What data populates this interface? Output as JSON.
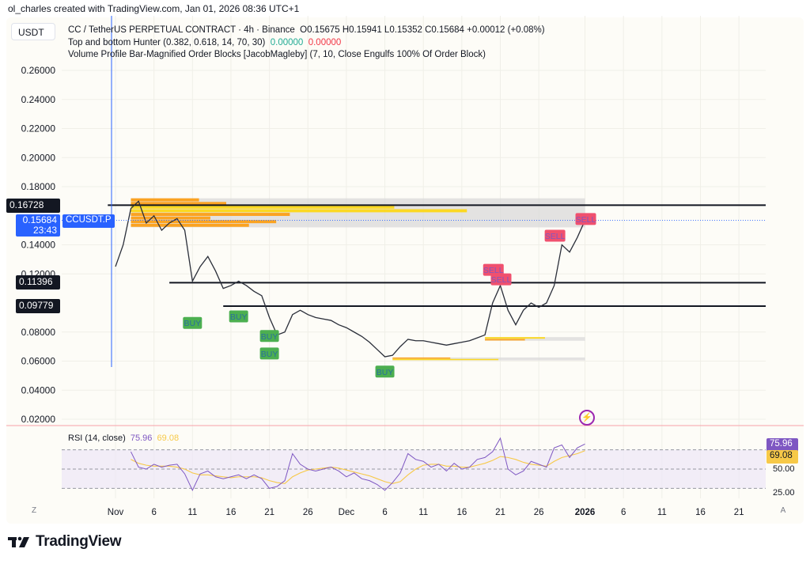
{
  "attribution": "ol_charles created with TradingView.com, Jan 01, 2026 08:36 UTC+1",
  "currency_button": "USDT",
  "legend": {
    "symbol": "CC / TetherUS PERPETUAL CONTRACT · 4h · Binance",
    "ohlc": "O0.15675  H0.15941  L0.15352  C0.15684  +0.00012 (+0.08%)",
    "indicator1": "Top and bottom Hunter (0.382, 0.618, 14, 70, 30)",
    "indicator1_v1": "0.00000",
    "indicator1_v2": "0.00000",
    "indicator2": "Volume Profile Bar-Magnified Order Blocks [JacobMagleby] (7, 10, Close Engulfs 100% Of Order Block)"
  },
  "price_labels": {
    "level1": "0.16728",
    "last": "0.15684",
    "countdown": "23:43",
    "symbol_tag": "CCUSDT.P",
    "level2": "0.11396",
    "level3": "0.09779"
  },
  "rsi": {
    "legend": "RSI (14, close)",
    "value": "75.96",
    "ma_value": "69.08",
    "labels": [
      "50.00",
      "25.00"
    ],
    "colors": {
      "rsi": "#7e57c2",
      "ma": "#f7c948",
      "band": "#ede7f6"
    }
  },
  "axis_buttons": {
    "left": "Z",
    "right": "A"
  },
  "logo": "TradingView",
  "colors": {
    "up": "#22ab94",
    "down": "#f23645",
    "accent": "#2962ff",
    "orderblock": "#ff9800",
    "orderblock_hi": "#ffd600"
  },
  "chart_data": [
    {
      "type": "line",
      "title": "CC / TetherUS PERPETUAL CONTRACT · 4h · Binance",
      "ylim": [
        0.01,
        0.28
      ],
      "y_ticks": [
        "0.26000",
        "0.24000",
        "0.22000",
        "0.20000",
        "0.18000",
        "0.14000",
        "0.12000",
        "0.08000",
        "0.06000",
        "0.04000",
        "0.02000"
      ],
      "x_ticks": [
        "Nov",
        "6",
        "11",
        "16",
        "21",
        "26",
        "Dec",
        "6",
        "11",
        "16",
        "21",
        "26",
        "2026",
        "6",
        "11",
        "16",
        "21"
      ],
      "x_tick_dates": [
        "2025-11-01",
        "2025-11-06",
        "2025-11-11",
        "2025-11-16",
        "2025-11-21",
        "2025-11-26",
        "2025-12-01",
        "2025-12-06",
        "2025-12-11",
        "2025-12-16",
        "2025-12-21",
        "2025-12-26",
        "2026-01-01",
        "2026-01-06",
        "2026-01-11",
        "2026-01-16",
        "2026-01-21"
      ],
      "grid": true,
      "series": [
        {
          "values": [
            [
              "2025-11-01",
              0.125
            ],
            [
              "2025-11-02",
              0.14
            ],
            [
              "2025-11-03",
              0.165
            ],
            [
              "2025-11-04",
              0.17
            ],
            [
              "2025-11-05",
              0.155
            ],
            [
              "2025-11-06",
              0.16
            ],
            [
              "2025-11-07",
              0.15
            ],
            [
              "2025-11-08",
              0.155
            ],
            [
              "2025-11-09",
              0.158
            ],
            [
              "2025-11-10",
              0.15
            ],
            [
              "2025-11-11",
              0.115
            ],
            [
              "2025-11-12",
              0.125
            ],
            [
              "2025-11-13",
              0.132
            ],
            [
              "2025-11-14",
              0.122
            ],
            [
              "2025-11-15",
              0.11
            ],
            [
              "2025-11-16",
              0.112
            ],
            [
              "2025-11-17",
              0.115
            ],
            [
              "2025-11-18",
              0.112
            ],
            [
              "2025-11-19",
              0.108
            ],
            [
              "2025-11-20",
              0.105
            ],
            [
              "2025-11-21",
              0.09
            ],
            [
              "2025-11-22",
              0.078
            ],
            [
              "2025-11-23",
              0.08
            ],
            [
              "2025-11-24",
              0.092
            ],
            [
              "2025-11-25",
              0.095
            ],
            [
              "2025-11-26",
              0.092
            ],
            [
              "2025-11-27",
              0.09
            ],
            [
              "2025-11-28",
              0.089
            ],
            [
              "2025-11-29",
              0.088
            ],
            [
              "2025-11-30",
              0.085
            ],
            [
              "2025-12-01",
              0.083
            ],
            [
              "2025-12-02",
              0.08
            ],
            [
              "2025-12-03",
              0.077
            ],
            [
              "2025-12-04",
              0.073
            ],
            [
              "2025-12-05",
              0.068
            ],
            [
              "2025-12-06",
              0.063
            ],
            [
              "2025-12-07",
              0.064
            ],
            [
              "2025-12-08",
              0.07
            ],
            [
              "2025-12-09",
              0.075
            ],
            [
              "2025-12-10",
              0.074
            ],
            [
              "2025-12-11",
              0.074
            ],
            [
              "2025-12-12",
              0.073
            ],
            [
              "2025-12-13",
              0.072
            ],
            [
              "2025-12-14",
              0.071
            ],
            [
              "2025-12-15",
              0.072
            ],
            [
              "2025-12-16",
              0.073
            ],
            [
              "2025-12-17",
              0.074
            ],
            [
              "2025-12-18",
              0.076
            ],
            [
              "2025-12-19",
              0.078
            ],
            [
              "2025-12-20",
              0.1
            ],
            [
              "2025-12-21",
              0.112
            ],
            [
              "2025-12-22",
              0.095
            ],
            [
              "2025-12-23",
              0.085
            ],
            [
              "2025-12-24",
              0.095
            ],
            [
              "2025-12-25",
              0.1
            ],
            [
              "2025-12-26",
              0.097
            ],
            [
              "2025-12-27",
              0.1
            ],
            [
              "2025-12-28",
              0.112
            ],
            [
              "2025-12-29",
              0.14
            ],
            [
              "2025-12-30",
              0.135
            ],
            [
              "2025-12-31",
              0.145
            ],
            [
              "2026-01-01",
              0.15684
            ]
          ]
        }
      ],
      "horizontal_levels": [
        {
          "price": 0.16728,
          "from": "2025-10-31"
        },
        {
          "price": 0.11396,
          "from": "2025-11-08"
        },
        {
          "price": 0.09779,
          "from": "2025-11-15"
        }
      ],
      "order_blocks": [
        {
          "top": 0.172,
          "bottom": 0.152,
          "from": "2025-11-03",
          "to": "2026-01-01",
          "profile": [
            0.15,
            0.21,
            0.58,
            0.74,
            0.35,
            0.175,
            0.32,
            0.26
          ]
        },
        {
          "top": 0.0765,
          "bottom": 0.074,
          "from": "2025-12-19",
          "to": "2026-01-01",
          "profile": [
            0.6,
            0.4
          ]
        },
        {
          "top": 0.0625,
          "bottom": 0.0605,
          "from": "2025-12-07",
          "to": "2026-01-01",
          "profile": [
            0.3,
            0.55
          ]
        }
      ],
      "signals": [
        {
          "label": "BUY",
          "date": "2025-11-11",
          "price": 0.086
        },
        {
          "label": "BUY",
          "date": "2025-11-17",
          "price": 0.0905
        },
        {
          "label": "BUY",
          "date": "2025-11-21",
          "price": 0.077
        },
        {
          "label": "BUY",
          "date": "2025-11-21",
          "price": 0.065
        },
        {
          "label": "BUY",
          "date": "2025-12-06",
          "price": 0.0525
        },
        {
          "label": "SELL",
          "date": "2025-12-20",
          "price": 0.1225
        },
        {
          "label": "SELL",
          "date": "2025-12-21",
          "price": 0.116
        },
        {
          "label": "SELL",
          "date": "2025-12-28",
          "price": 0.146
        },
        {
          "label": "SELL",
          "date": "2026-01-01",
          "price": 0.1575
        }
      ]
    },
    {
      "type": "line",
      "title": "RSI (14, close)",
      "ylim": [
        20,
        85
      ],
      "bands": [
        30,
        50,
        70
      ],
      "series": [
        {
          "name": "RSI",
          "start": "2025-11-03",
          "values": [
            68,
            52,
            50,
            55,
            52,
            54,
            55,
            45,
            28,
            45,
            48,
            42,
            40,
            42,
            44,
            40,
            44,
            40,
            30,
            32,
            38,
            66,
            55,
            50,
            48,
            50,
            52,
            48,
            42,
            46,
            40,
            38,
            34,
            28,
            36,
            46,
            66,
            60,
            58,
            52,
            55,
            48,
            56,
            50,
            52,
            60,
            62,
            68,
            82,
            50,
            44,
            48,
            58,
            55,
            52,
            72,
            75,
            62,
            72,
            75.96
          ]
        },
        {
          "name": "MA",
          "start": "2025-11-03",
          "values": [
            60,
            56,
            54,
            53,
            53,
            53,
            52,
            50,
            46,
            44,
            44,
            43,
            42,
            41,
            42,
            42,
            42,
            41,
            38,
            36,
            35,
            42,
            46,
            49,
            50,
            51,
            52,
            51,
            49,
            47,
            45,
            43,
            40,
            37,
            35,
            37,
            44,
            50,
            54,
            55,
            55,
            53,
            53,
            52,
            52,
            54,
            56,
            59,
            63,
            62,
            60,
            57,
            55,
            54,
            53,
            58,
            62,
            64,
            66,
            69.08
          ]
        }
      ]
    }
  ]
}
